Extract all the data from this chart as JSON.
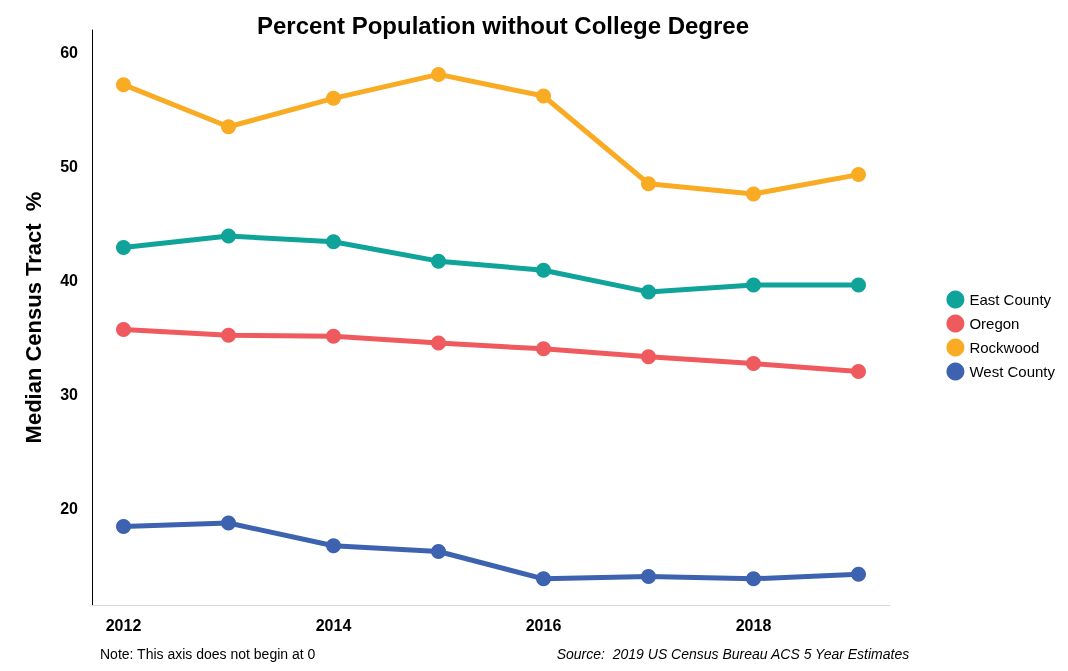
{
  "chart_data": {
    "type": "line",
    "title": "Percent Population without College Degree",
    "ylabel": "Median Census Tract  %",
    "x": [
      2012,
      2013,
      2014,
      2015,
      2016,
      2017,
      2018,
      2019
    ],
    "series": [
      {
        "name": "East County",
        "color": "#0fa39a",
        "values": [
          42.9,
          43.9,
          43.4,
          41.7,
          40.9,
          39.0,
          39.6,
          39.6
        ]
      },
      {
        "name": "Oregon",
        "color": "#ef5a5f",
        "values": [
          35.7,
          35.2,
          35.1,
          34.5,
          34.0,
          33.3,
          32.7,
          32.0
        ]
      },
      {
        "name": "Rockwood",
        "color": "#f9ab24",
        "values": [
          57.2,
          53.5,
          56.0,
          58.1,
          56.2,
          48.5,
          47.6,
          49.3
        ]
      },
      {
        "name": "West County",
        "color": "#3d62b0",
        "values": [
          18.4,
          18.7,
          16.7,
          16.2,
          13.8,
          14.0,
          13.8,
          14.2
        ]
      }
    ],
    "xlim": [
      2011.7,
      2019.3
    ],
    "xticks": [
      2012,
      2014,
      2016,
      2018
    ],
    "ylim": [
      11.5,
      62
    ],
    "yticks": [
      20,
      30,
      40,
      50,
      60
    ],
    "grid": false,
    "legend": "right",
    "marker": "circle",
    "line_style": "solid",
    "annotations": [
      "Note: This axis does not begin at 0",
      "Source:  2019 US Census Bureau ACS 5 Year Estimates"
    ]
  }
}
